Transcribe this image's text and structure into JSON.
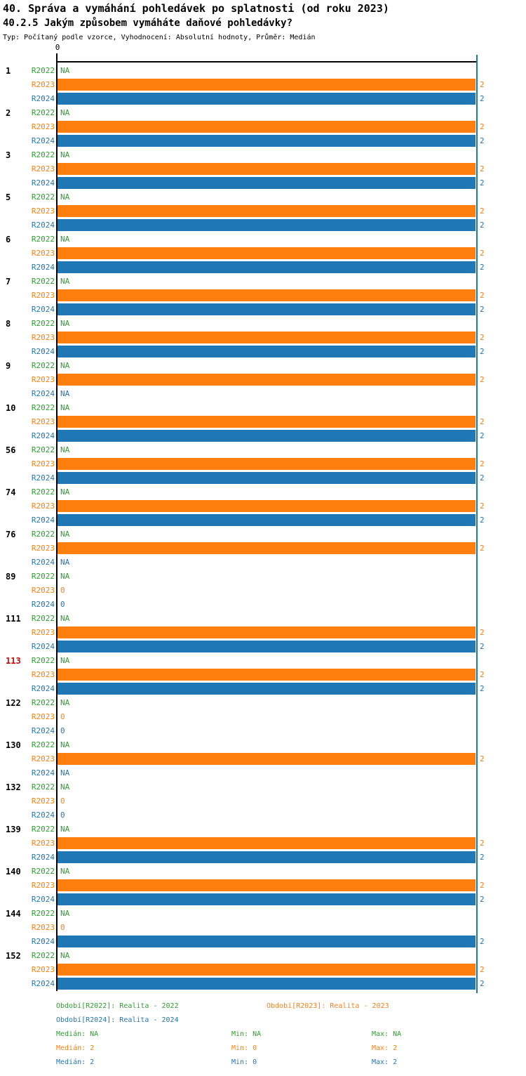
{
  "header": {
    "title": "40. Správa a vymáhání pohledávek po splatnosti (od roku 2023)",
    "subtitle": "40.2.5 Jakým způsobem vymáháte daňové pohledávky?",
    "meta": "Typ: Počítaný podle vzorce, Vyhodnocení: Absolutní hodnoty, Průměr: Medián"
  },
  "chart_data": {
    "type": "bar",
    "orientation": "horizontal",
    "axis": {
      "tick_label": "0",
      "xlim": [
        0,
        2
      ],
      "right_guide_value": 2
    },
    "series_labels": [
      "R2022",
      "R2023",
      "R2024"
    ],
    "series_colors": [
      "#2CA02C",
      "#FF7F0E",
      "#1F77B4"
    ],
    "na_text": "NA",
    "highlight_color": "#D40000",
    "highlighted_ids": [
      "113"
    ],
    "groups": [
      {
        "id": "1",
        "values": [
          "NA",
          2,
          2
        ]
      },
      {
        "id": "2",
        "values": [
          "NA",
          2,
          2
        ]
      },
      {
        "id": "3",
        "values": [
          "NA",
          2,
          2
        ]
      },
      {
        "id": "5",
        "values": [
          "NA",
          2,
          2
        ]
      },
      {
        "id": "6",
        "values": [
          "NA",
          2,
          2
        ]
      },
      {
        "id": "7",
        "values": [
          "NA",
          2,
          2
        ]
      },
      {
        "id": "8",
        "values": [
          "NA",
          2,
          2
        ]
      },
      {
        "id": "9",
        "values": [
          "NA",
          2,
          "NA"
        ]
      },
      {
        "id": "10",
        "values": [
          "NA",
          2,
          2
        ]
      },
      {
        "id": "56",
        "values": [
          "NA",
          2,
          2
        ]
      },
      {
        "id": "74",
        "values": [
          "NA",
          2,
          2
        ]
      },
      {
        "id": "76",
        "values": [
          "NA",
          2,
          "NA"
        ]
      },
      {
        "id": "89",
        "values": [
          "NA",
          0,
          0
        ]
      },
      {
        "id": "111",
        "values": [
          "NA",
          2,
          2
        ]
      },
      {
        "id": "113",
        "values": [
          "NA",
          2,
          2
        ]
      },
      {
        "id": "122",
        "values": [
          "NA",
          0,
          0
        ]
      },
      {
        "id": "130",
        "values": [
          "NA",
          2,
          "NA"
        ]
      },
      {
        "id": "132",
        "values": [
          "NA",
          0,
          0
        ]
      },
      {
        "id": "139",
        "values": [
          "NA",
          2,
          2
        ]
      },
      {
        "id": "140",
        "values": [
          "NA",
          2,
          2
        ]
      },
      {
        "id": "144",
        "values": [
          "NA",
          0,
          2
        ]
      },
      {
        "id": "152",
        "values": [
          "NA",
          2,
          2
        ]
      }
    ]
  },
  "legend": {
    "periods": [
      {
        "label": "Období[R2022]: Realita - 2022"
      },
      {
        "label": "Období[R2023]: Realita - 2023"
      },
      {
        "label": "Období[R2024]: Realita - 2024"
      }
    ],
    "stats": [
      {
        "median": "Medián: NA",
        "min": "Min: NA",
        "max": "Max: NA"
      },
      {
        "median": "Medián: 2",
        "min": "Min: 0",
        "max": "Max: 2"
      },
      {
        "median": "Medián: 2",
        "min": "Min: 0",
        "max": "Max: 2"
      }
    ]
  }
}
